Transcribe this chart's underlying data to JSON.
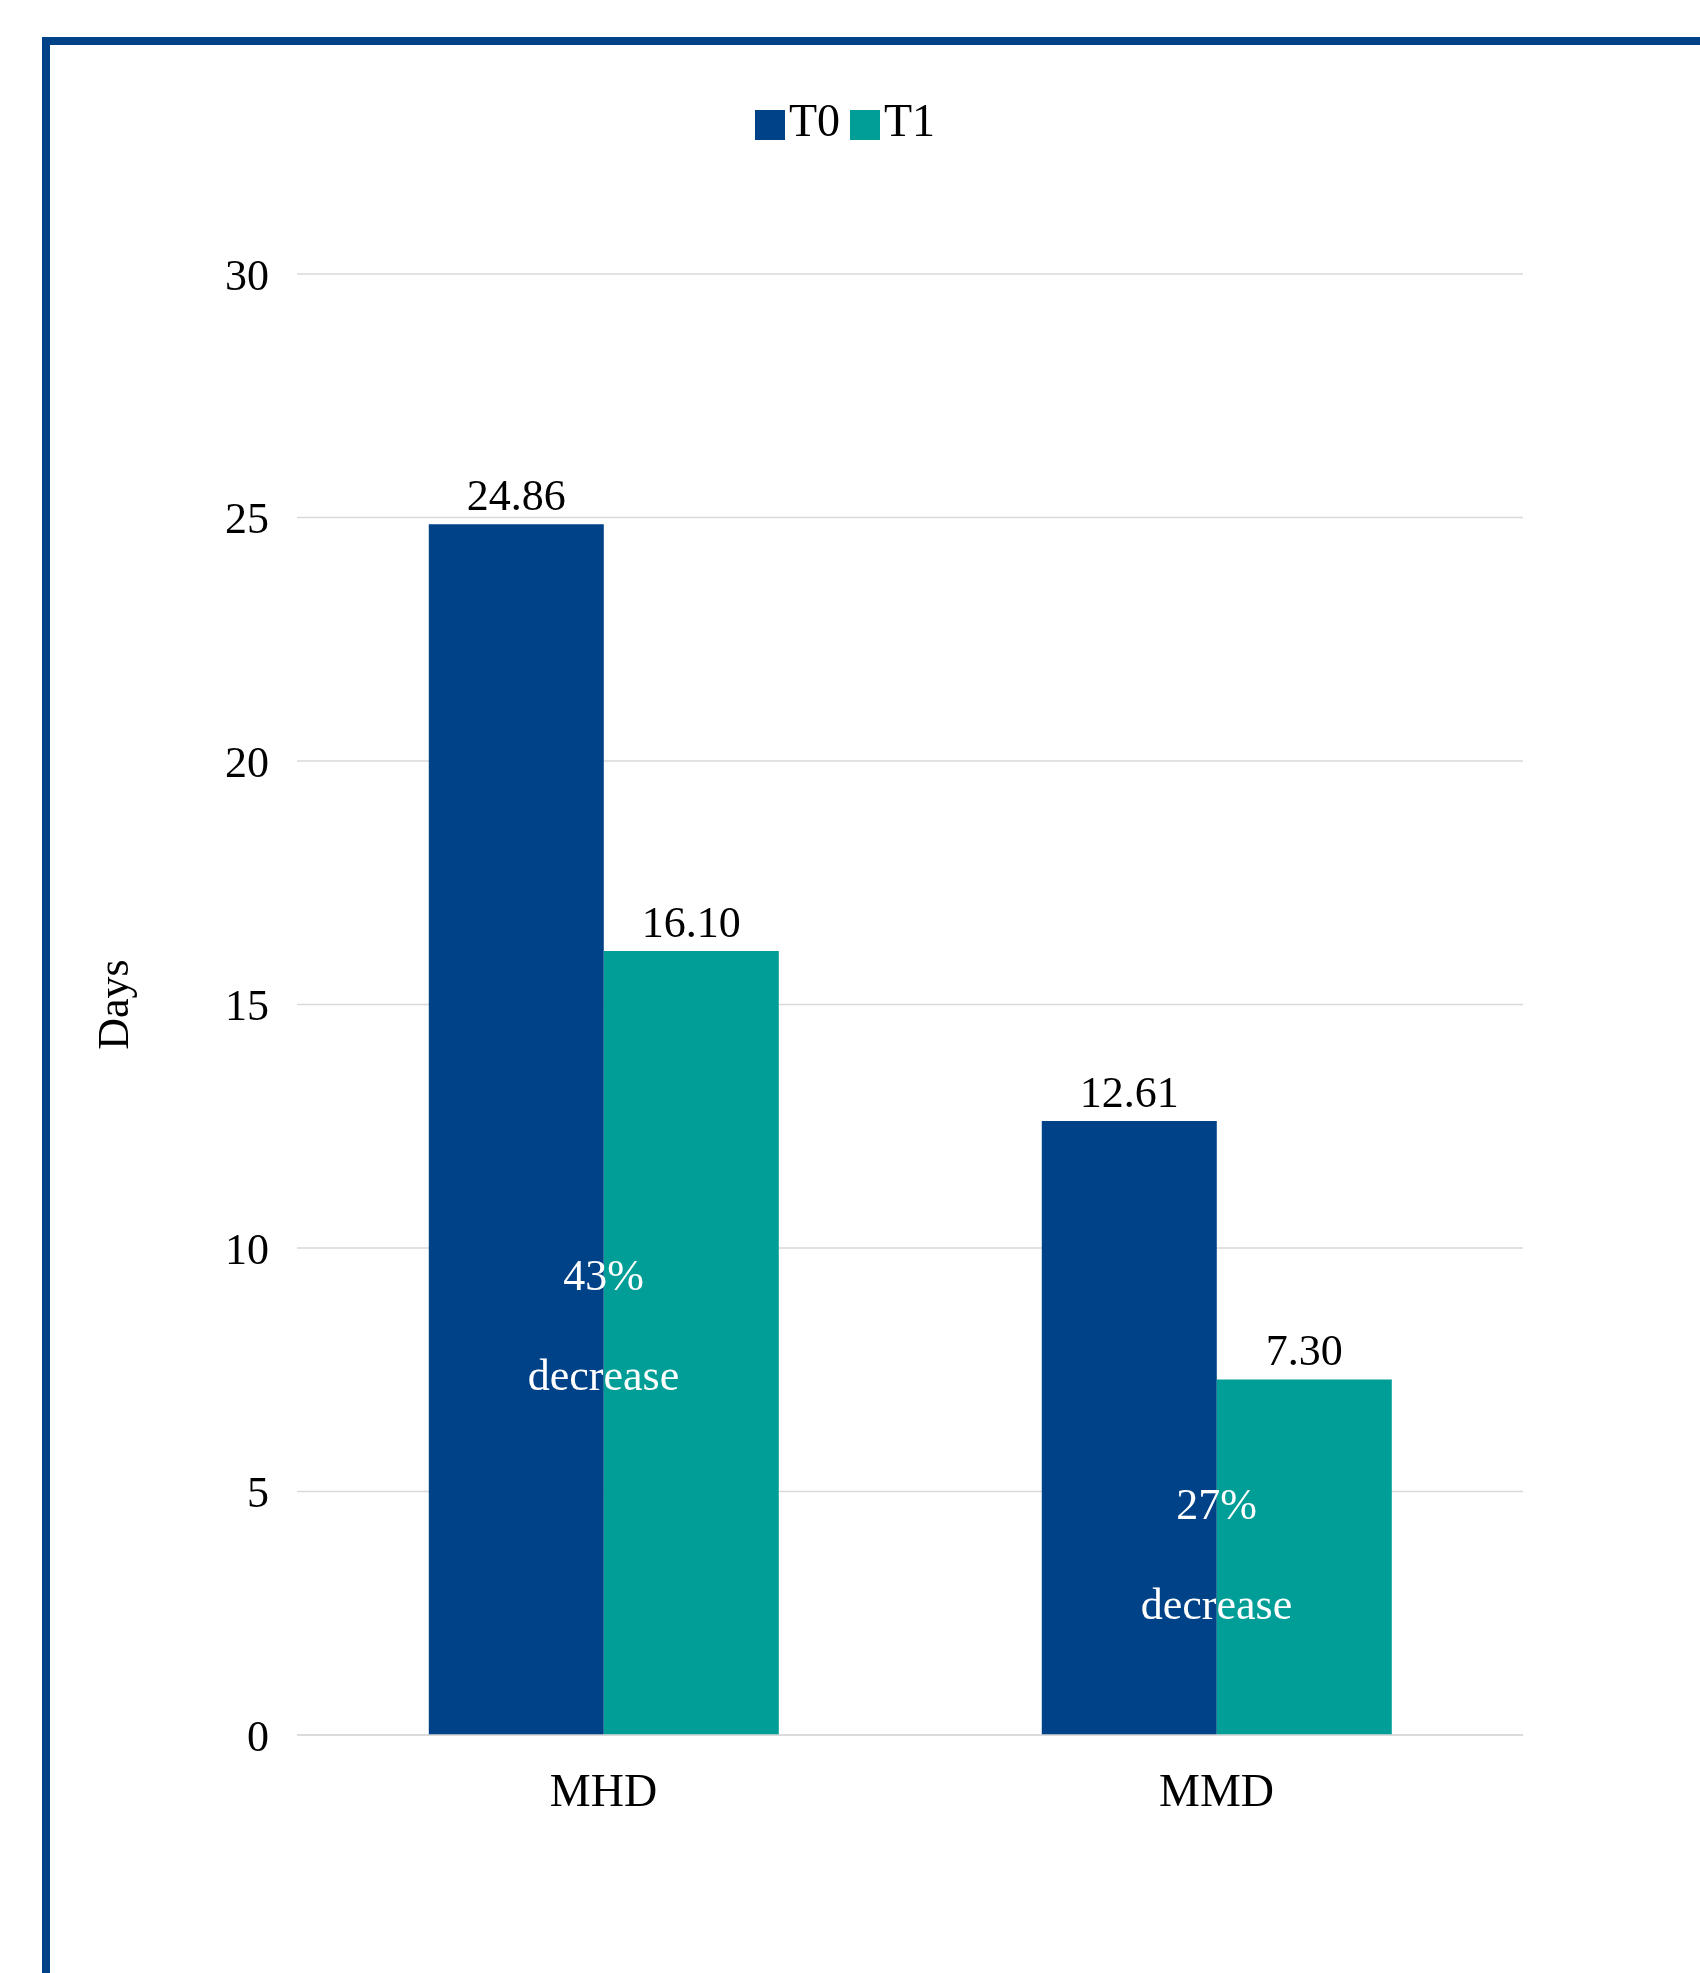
{
  "chart_data": {
    "type": "bar",
    "ylabel": "Days",
    "categories": [
      "MHD",
      "MMD"
    ],
    "series": [
      {
        "name": "T0",
        "color": "#004288",
        "values": [
          24.86,
          12.61
        ],
        "value_labels": [
          "24.86",
          "12.61"
        ]
      },
      {
        "name": "T1",
        "color": "#009e96",
        "values": [
          16.1,
          7.3
        ],
        "value_labels": [
          "16.10",
          "7.30"
        ]
      }
    ],
    "ylim": [
      0,
      30
    ],
    "yticks": [
      0,
      5,
      10,
      15,
      20,
      25,
      30
    ],
    "grid": "y",
    "legend": "top",
    "annotations": [
      {
        "text": "43% decrease",
        "x": "MHD",
        "y": 8.4
      },
      {
        "text": "27% decrease",
        "x": "MMD",
        "y": 3.7
      }
    ]
  }
}
